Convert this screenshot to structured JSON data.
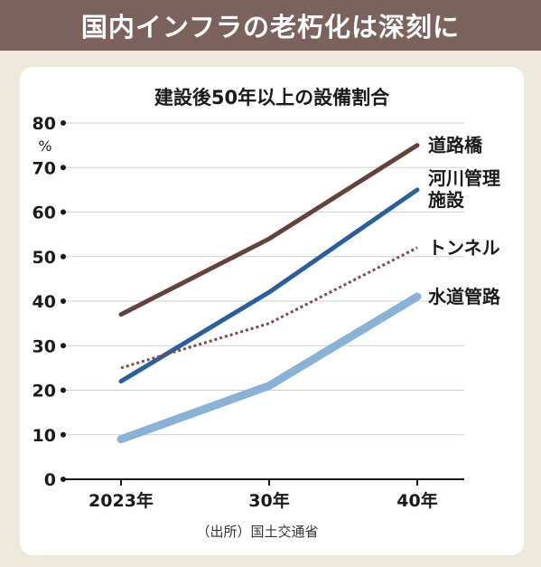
{
  "header": {
    "title": "国内インフラの老朽化は深刻に"
  },
  "chart_data": {
    "type": "line",
    "title": "建設後50年以上の設備割合",
    "unit": "%",
    "categories": [
      "2023年",
      "30年",
      "40年"
    ],
    "ylim": [
      0,
      80
    ],
    "yticks": [
      0,
      10,
      20,
      30,
      40,
      50,
      60,
      70,
      80
    ],
    "grid": true,
    "series": [
      {
        "name": "道路橋",
        "label_lines": [
          "道路橋"
        ],
        "values": [
          37,
          54,
          75
        ],
        "color": "#63413f",
        "style": "solid"
      },
      {
        "name": "河川管理施設",
        "label_lines": [
          "河川管理",
          "施設"
        ],
        "values": [
          22,
          42,
          65
        ],
        "color": "#2b5f98",
        "style": "solid"
      },
      {
        "name": "トンネル",
        "label_lines": [
          "トンネル"
        ],
        "values": [
          25,
          35,
          52
        ],
        "color": "#7b4a4a",
        "style": "dotted"
      },
      {
        "name": "水道管路",
        "label_lines": [
          "水道管路"
        ],
        "values": [
          9,
          21,
          41
        ],
        "color": "#8ab2d6",
        "style": "thick"
      }
    ],
    "source": "（出所）国土交通省"
  }
}
